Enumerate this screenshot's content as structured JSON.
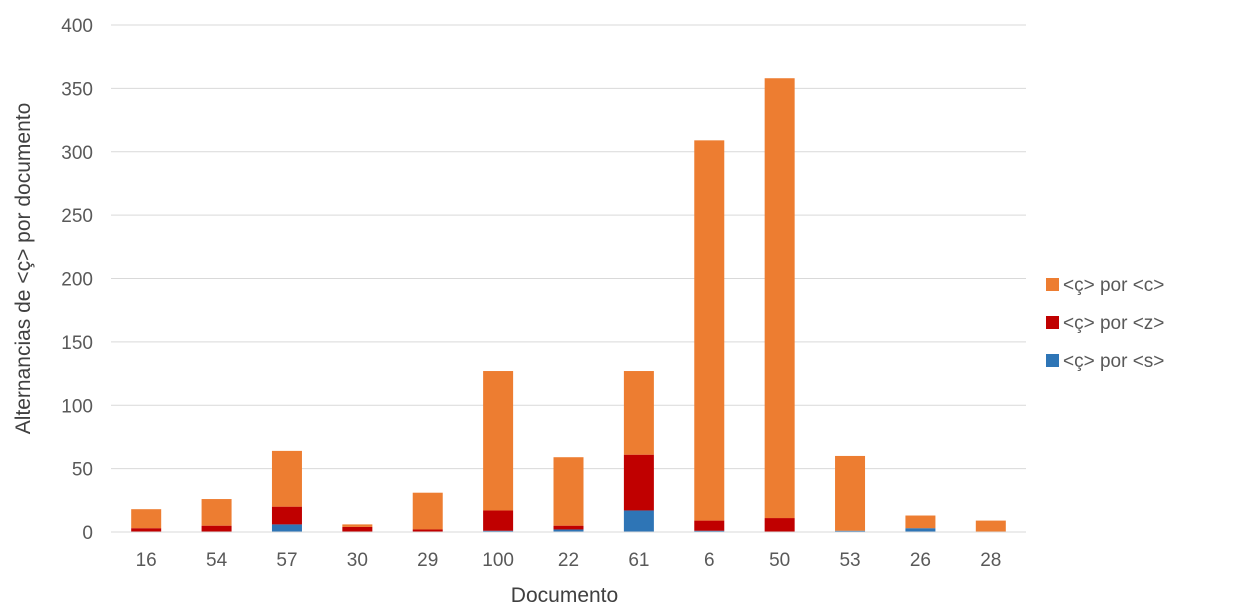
{
  "chart_data": {
    "type": "bar",
    "stacked": true,
    "title": "",
    "xlabel": "Documento",
    "ylabel": "Alternancias de <ç> por documento",
    "ylim": [
      0,
      400
    ],
    "yticks": [
      0,
      50,
      100,
      150,
      200,
      250,
      300,
      350,
      400
    ],
    "grid": true,
    "legend_position": "right",
    "categories": [
      "16",
      "54",
      "57",
      "30",
      "29",
      "100",
      "22",
      "61",
      "6",
      "50",
      "53",
      "26",
      "28"
    ],
    "series": [
      {
        "name": "<ç> por <s>",
        "color": "#2E75B6",
        "values": [
          0,
          0,
          6,
          0,
          0,
          1,
          2,
          17,
          1,
          0,
          1,
          3,
          0
        ]
      },
      {
        "name": "<ç> por <z>",
        "color": "#C00000",
        "values": [
          3,
          5,
          14,
          4,
          2,
          16,
          3,
          44,
          8,
          11,
          0,
          0,
          0
        ]
      },
      {
        "name": "<ç> por <c>",
        "color": "#ED7D31",
        "values": [
          15,
          21,
          44,
          2,
          29,
          110,
          54,
          66,
          300,
          347,
          59,
          10,
          9
        ]
      }
    ],
    "legend_order": [
      "<ç> por <c>",
      "<ç> por <z>",
      "<ç> por <s>"
    ]
  }
}
